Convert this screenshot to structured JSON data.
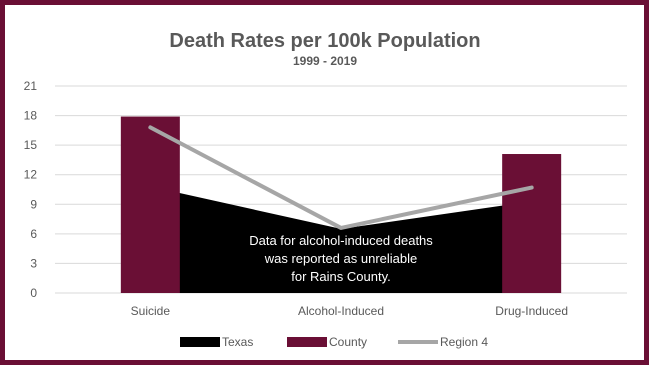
{
  "chart_data": {
    "type": "bar",
    "title": "Death Rates per 100k Population",
    "subtitle": "1999 - 2019",
    "categories": [
      "Suicide",
      "Alcohol-Induced",
      "Drug-Induced"
    ],
    "ylim": [
      0,
      21
    ],
    "yticks": [
      0,
      3,
      6,
      9,
      12,
      15,
      18,
      21
    ],
    "grid": true,
    "legend_position": "bottom",
    "series": [
      {
        "name": "Texas",
        "kind": "area",
        "color": "#000000",
        "values": [
          10.8,
          6.5,
          9.3
        ]
      },
      {
        "name": "County",
        "kind": "bar",
        "color": "#6a0f35",
        "values": [
          17.9,
          null,
          14.1
        ]
      },
      {
        "name": "Region 4",
        "kind": "line",
        "color": "#a6a6a6",
        "values": [
          16.8,
          6.6,
          10.7
        ]
      }
    ],
    "annotation": [
      "Data for alcohol-induced deaths",
      "was reported as unreliable",
      "for Rains County."
    ]
  }
}
